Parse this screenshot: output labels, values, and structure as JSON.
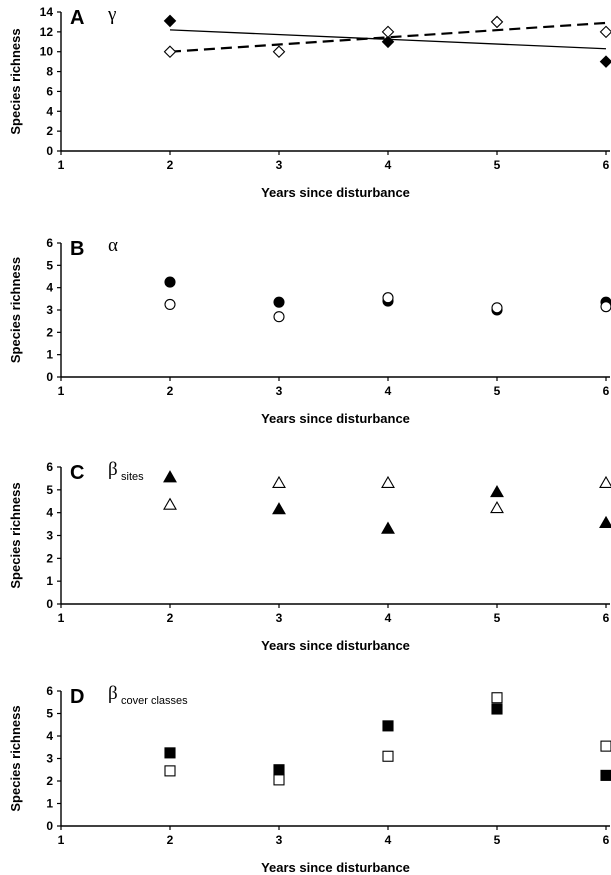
{
  "chart_data": [
    {
      "type": "scatter",
      "panel_label": "A",
      "symbol": "γ",
      "symbol_sub": "",
      "xlabel": "Years since disturbance",
      "ylabel": "Species richness",
      "xlim": [
        1,
        6
      ],
      "ylim": [
        0,
        14
      ],
      "xticks": [
        "1",
        "2",
        "3",
        "4",
        "5",
        "6"
      ],
      "yticks": [
        "0",
        "2",
        "4",
        "6",
        "8",
        "10",
        "12",
        "14"
      ],
      "marker": "diamond",
      "series": [
        {
          "filled": true,
          "points": [
            {
              "x": 2,
              "y": 13.1
            },
            {
              "x": 4,
              "y": 11
            },
            {
              "x": 6,
              "y": 9
            }
          ],
          "trendline": {
            "style": "solid",
            "x": [
              2,
              6
            ],
            "y": [
              12.2,
              10.3
            ]
          }
        },
        {
          "filled": false,
          "points": [
            {
              "x": 2,
              "y": 10
            },
            {
              "x": 3,
              "y": 10
            },
            {
              "x": 4,
              "y": 12
            },
            {
              "x": 5,
              "y": 13
            },
            {
              "x": 6,
              "y": 12
            }
          ],
          "trendline": {
            "style": "dashed",
            "x": [
              2,
              6
            ],
            "y": [
              10,
              12.9
            ]
          }
        }
      ]
    },
    {
      "type": "scatter",
      "panel_label": "B",
      "symbol": "α",
      "symbol_sub": "",
      "xlabel": "Years since disturbance",
      "ylabel": "Species richness",
      "xlim": [
        1,
        6
      ],
      "ylim": [
        0,
        6
      ],
      "xticks": [
        "1",
        "2",
        "3",
        "4",
        "5",
        "6"
      ],
      "yticks": [
        "0",
        "1",
        "2",
        "3",
        "4",
        "5",
        "6"
      ],
      "marker": "circle",
      "series": [
        {
          "filled": true,
          "points": [
            {
              "x": 2,
              "y": 4.25
            },
            {
              "x": 3,
              "y": 3.35
            },
            {
              "x": 4,
              "y": 3.4
            },
            {
              "x": 5,
              "y": 3.0
            },
            {
              "x": 6,
              "y": 3.35
            }
          ]
        },
        {
          "filled": false,
          "points": [
            {
              "x": 2,
              "y": 3.25
            },
            {
              "x": 3,
              "y": 2.7
            },
            {
              "x": 4,
              "y": 3.55
            },
            {
              "x": 5,
              "y": 3.1
            },
            {
              "x": 6,
              "y": 3.15
            }
          ]
        }
      ]
    },
    {
      "type": "scatter",
      "panel_label": "C",
      "symbol": "β",
      "symbol_sub": "sites",
      "xlabel": "Years since disturbance",
      "ylabel": "Species richness",
      "xlim": [
        1,
        6
      ],
      "ylim": [
        0,
        6
      ],
      "xticks": [
        "1",
        "2",
        "3",
        "4",
        "5",
        "6"
      ],
      "yticks": [
        "0",
        "1",
        "2",
        "3",
        "4",
        "5",
        "6"
      ],
      "marker": "triangle",
      "series": [
        {
          "filled": true,
          "points": [
            {
              "x": 2,
              "y": 5.55
            },
            {
              "x": 3,
              "y": 4.15
            },
            {
              "x": 4,
              "y": 3.3
            },
            {
              "x": 5,
              "y": 4.9
            },
            {
              "x": 6,
              "y": 3.55
            }
          ]
        },
        {
          "filled": false,
          "points": [
            {
              "x": 2,
              "y": 4.35
            },
            {
              "x": 3,
              "y": 5.3
            },
            {
              "x": 4,
              "y": 5.3
            },
            {
              "x": 5,
              "y": 4.2
            },
            {
              "x": 6,
              "y": 5.3
            }
          ]
        }
      ]
    },
    {
      "type": "scatter",
      "panel_label": "D",
      "symbol": "β",
      "symbol_sub": "cover classes",
      "xlabel": "Years since disturbance",
      "ylabel": "Species richness",
      "xlim": [
        1,
        6
      ],
      "ylim": [
        0,
        6
      ],
      "xticks": [
        "1",
        "2",
        "3",
        "4",
        "5",
        "6"
      ],
      "yticks": [
        "0",
        "1",
        "2",
        "3",
        "4",
        "5",
        "6"
      ],
      "marker": "square",
      "series": [
        {
          "filled": true,
          "points": [
            {
              "x": 2,
              "y": 3.25
            },
            {
              "x": 3,
              "y": 2.5
            },
            {
              "x": 4,
              "y": 4.45
            },
            {
              "x": 5,
              "y": 5.2
            },
            {
              "x": 6,
              "y": 2.25
            }
          ]
        },
        {
          "filled": false,
          "points": [
            {
              "x": 2,
              "y": 2.45
            },
            {
              "x": 3,
              "y": 2.05
            },
            {
              "x": 4,
              "y": 3.1
            },
            {
              "x": 5,
              "y": 5.7
            },
            {
              "x": 6,
              "y": 3.55
            }
          ]
        }
      ]
    }
  ]
}
